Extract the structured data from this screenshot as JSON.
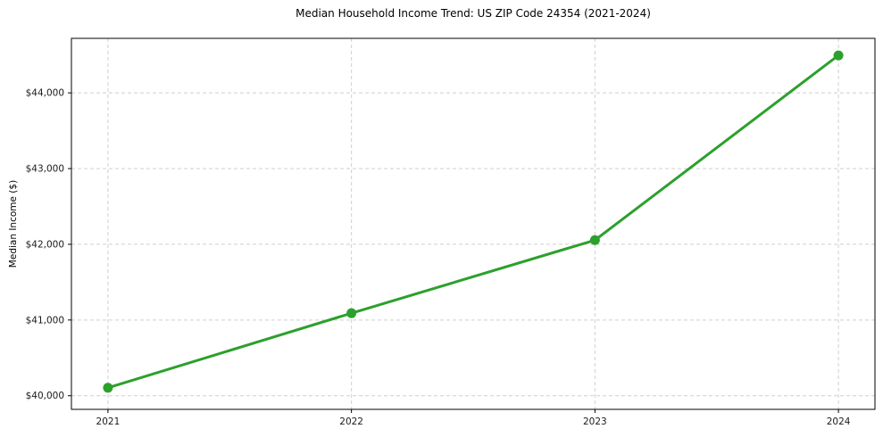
{
  "page": {
    "background_color": "#ffffff"
  },
  "chart_data": {
    "type": "line",
    "title": "Median Household Income Trend: US ZIP Code 24354 (2021-2024)",
    "xlabel": "",
    "ylabel": "Median Income ($)",
    "x": [
      2021,
      2022,
      2023,
      2024
    ],
    "x_tick_labels": [
      "2021",
      "2022",
      "2023",
      "2024"
    ],
    "y_ticks": [
      40000,
      41000,
      42000,
      43000,
      44000
    ],
    "y_tick_labels": [
      "$40,000",
      "$41,000",
      "$42,000",
      "$43,000",
      "$44,000"
    ],
    "series": [
      {
        "name": "Median Household Income",
        "values": [
          40105,
          41090,
          42055,
          44495
        ],
        "color": "#2ca02c"
      }
    ],
    "xlim": [
      2020.85,
      2024.15
    ],
    "ylim": [
      39820,
      44720
    ],
    "grid": true,
    "grid_style": "dashed",
    "grid_color": "#cfcfcf",
    "legend_position": "none",
    "line_width": 3,
    "marker": "circle",
    "marker_diameter": 11,
    "tick_color": "#000000",
    "spine_color": "#000000"
  }
}
